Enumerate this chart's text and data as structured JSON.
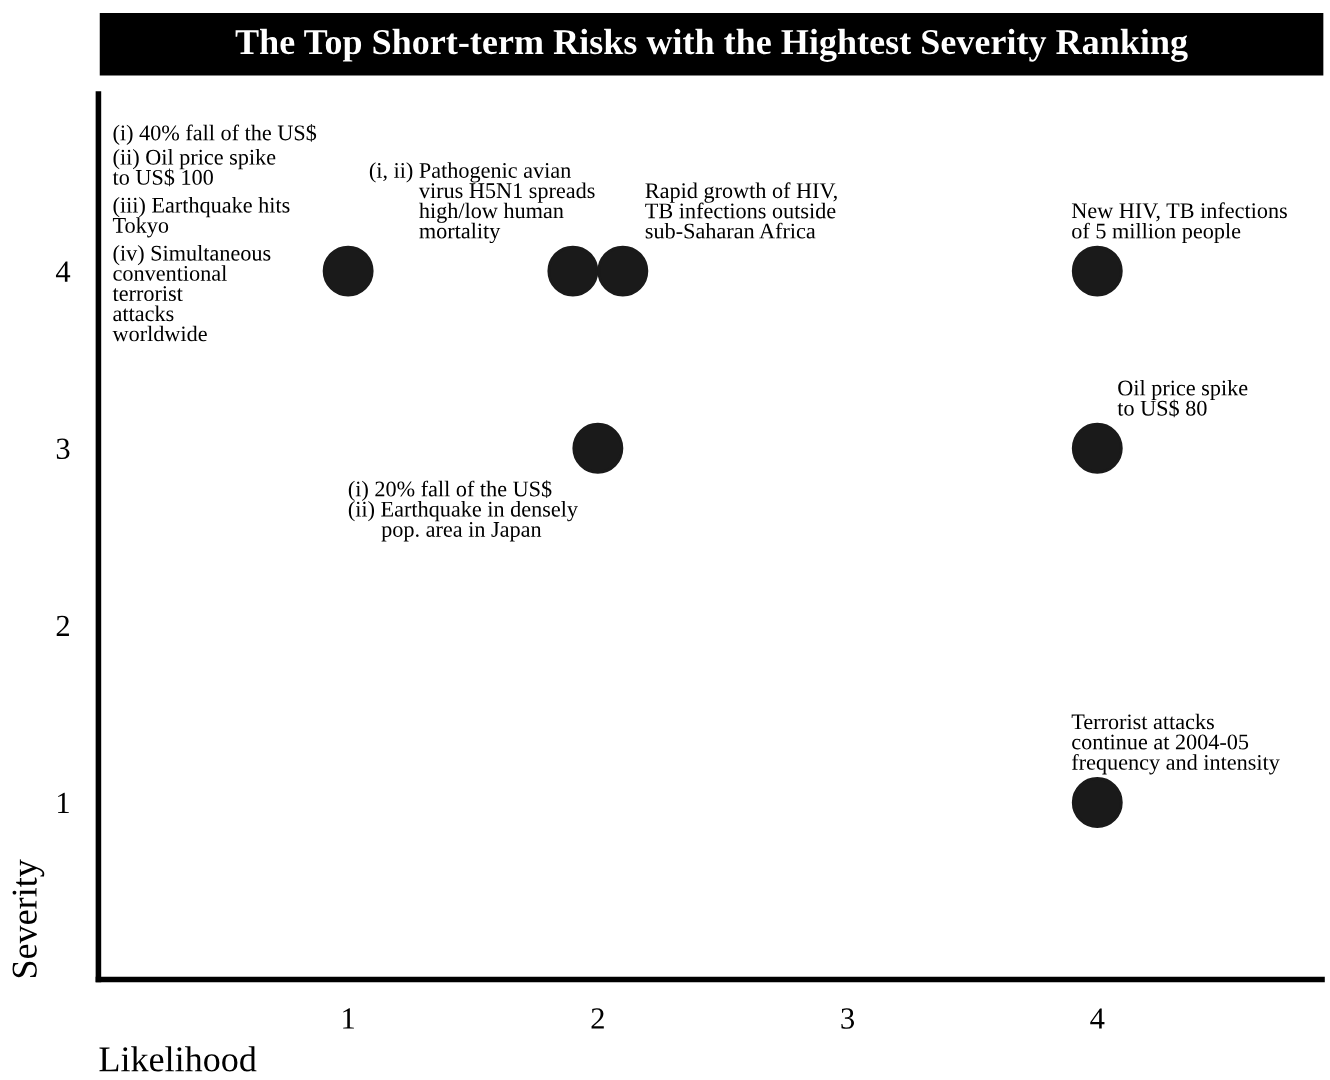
{
  "chart_data": {
    "type": "scatter",
    "title": "The Top Short-term Risks with the Hightest Severity Ranking",
    "xlabel": "Likelihood",
    "ylabel": "Severity",
    "xlim": [
      0,
      4.9
    ],
    "ylim": [
      0,
      5
    ],
    "xticks": [
      1,
      2,
      3,
      4
    ],
    "yticks": [
      1,
      2,
      3,
      4
    ],
    "grid": false,
    "marker": "circle",
    "series": [
      {
        "color": "#1a1a1a",
        "x": [
          1,
          1.9,
          2.1,
          2,
          4,
          4,
          4
        ],
        "values": [
          4,
          4,
          4,
          3,
          4,
          3,
          1
        ]
      }
    ],
    "annotations": [
      "(i) 40% fall of the US$",
      "(ii) Oil price spike\nto US$ 100",
      "(iii) Earthquake hits\nTokyo",
      "(iv) Simultaneous\nconventional\nterrorist\nattacks\nworldwide",
      {
        "text": "(i, ii) Pathogenic avian\n         virus H5N1 spreads\n         high/low human\n         mortality",
        "x": 1.9,
        "y": 4
      },
      {
        "text": "Rapid growth of HIV,\nTB infections outside\nsub-Saharan Africa",
        "x": 2.1,
        "y": 4
      },
      {
        "text": "(i) 20% fall of the US$\n(ii) Earthquake in densely\n      pop. area in Japan",
        "x": 2,
        "y": 3
      },
      {
        "text": "New HIV, TB infections\nof 5 million people",
        "x": 4,
        "y": 4
      },
      {
        "text": "Oil price spike\nto US$ 80",
        "x": 4,
        "y": 3
      },
      {
        "text": "Terrorist attacks\ncontinue at 2004-05\nfrequency and intensity",
        "x": 4,
        "y": 1
      }
    ]
  }
}
